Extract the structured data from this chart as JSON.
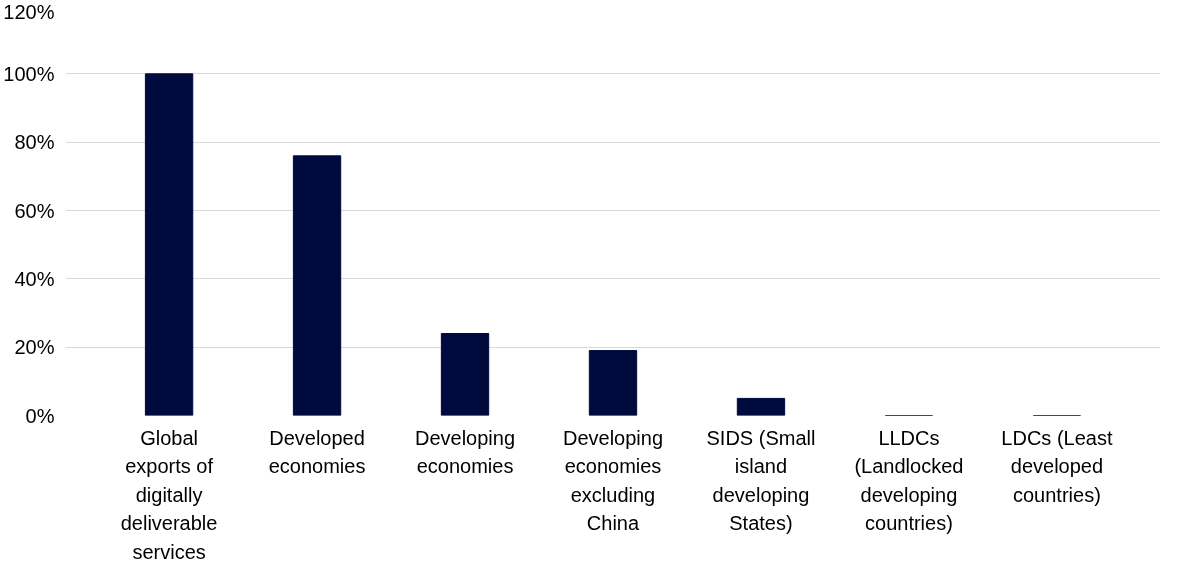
{
  "chart_data": {
    "type": "bar",
    "categories": [
      "Global exports of digitally deliverable services",
      "Developed economies",
      "Developing economies",
      "Developing economies excluding China",
      "SIDS (Small island developing States)",
      "LLDCs (Landlocked developing countries)",
      "LDCs (Least developed countries)"
    ],
    "values": [
      100,
      76,
      24,
      19,
      5,
      0,
      0
    ],
    "color": "#000a3d",
    "ylim": [
      0,
      120
    ],
    "yticks": [
      {
        "value": 0,
        "label": "0%"
      },
      {
        "value": 20,
        "label": "20%"
      },
      {
        "value": 40,
        "label": "40%"
      },
      {
        "value": 60,
        "label": "60%"
      },
      {
        "value": 80,
        "label": "80%"
      },
      {
        "value": 100,
        "label": "100%"
      },
      {
        "value": 120,
        "label": "120%"
      }
    ],
    "grid": "y"
  }
}
